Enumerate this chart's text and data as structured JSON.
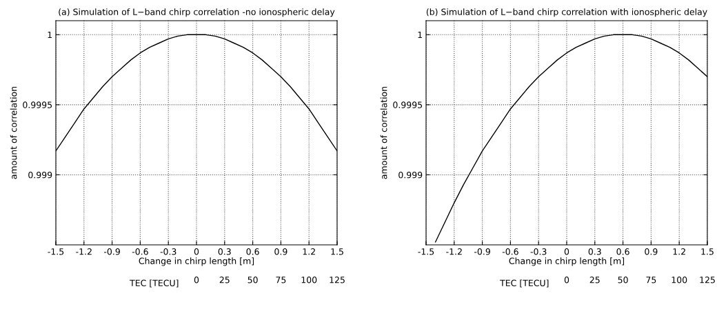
{
  "chart_data": [
    {
      "type": "line",
      "title": "(a) Simulation of L−band chirp correlation -no ionospheric delay",
      "xlabel": "Change in chirp length [m]",
      "ylabel": "amount of correlation",
      "x2label": "TEC [TECU]",
      "x": [
        -1.5,
        -1.4,
        -1.3,
        -1.2,
        -1.1,
        -1.0,
        -0.9,
        -0.8,
        -0.7,
        -0.6,
        -0.5,
        -0.4,
        -0.3,
        -0.2,
        -0.1,
        0,
        0.1,
        0.2,
        0.3,
        0.4,
        0.5,
        0.6,
        0.7,
        0.8,
        0.9,
        1.0,
        1.1,
        1.2,
        1.3,
        1.4,
        1.5
      ],
      "series": [
        {
          "color": "#000000",
          "values": [
            0.99917,
            0.99927,
            0.99937,
            0.99947,
            0.99955,
            0.99963,
            0.9997,
            0.99976,
            0.99982,
            0.99987,
            0.99991,
            0.99994,
            0.99997,
            0.99999,
            1.0,
            1.0,
            1.0,
            0.99999,
            0.99997,
            0.99994,
            0.99991,
            0.99987,
            0.99982,
            0.99976,
            0.9997,
            0.99963,
            0.99955,
            0.99947,
            0.99937,
            0.99927,
            0.99917
          ]
        }
      ],
      "xlim": [
        -1.5,
        1.5
      ],
      "xticks": [
        -1.5,
        -1.2,
        -0.9,
        -0.6,
        -0.3,
        0,
        0.3,
        0.6,
        0.9,
        1.2,
        1.5
      ],
      "ylim": [
        0.9985,
        1.0001
      ],
      "yticks": [
        0.999,
        0.9995,
        1
      ],
      "x2lim": [
        -125,
        125
      ],
      "x2ticks": [
        0,
        25,
        50,
        75,
        100,
        125
      ],
      "grid": true,
      "line_style": "solid",
      "marker": "none"
    },
    {
      "type": "line",
      "title": "(b) Simulation of L−band chirp correlation with ionospheric delay",
      "xlabel": "Change in chirp length [m]",
      "ylabel": "amount of correlation",
      "x2label": "TEC [TECU]",
      "x": [
        -1.4,
        -1.3,
        -1.2,
        -1.1,
        -1.0,
        -0.9,
        -0.8,
        -0.7,
        -0.6,
        -0.5,
        -0.4,
        -0.3,
        -0.2,
        -0.1,
        0,
        0.1,
        0.2,
        0.3,
        0.4,
        0.5,
        0.6,
        0.7,
        0.8,
        0.9,
        1.0,
        1.1,
        1.2,
        1.3,
        1.4,
        1.5
      ],
      "series": [
        {
          "color": "#000000",
          "values": [
            0.99852,
            0.99866,
            0.9988,
            0.99893,
            0.99905,
            0.99917,
            0.99927,
            0.99937,
            0.99947,
            0.99955,
            0.99963,
            0.9997,
            0.99976,
            0.99982,
            0.99987,
            0.99991,
            0.99994,
            0.99997,
            0.99999,
            1.0,
            1.0,
            1.0,
            0.99999,
            0.99997,
            0.99994,
            0.99991,
            0.99987,
            0.99982,
            0.99976,
            0.9997
          ]
        }
      ],
      "xlim": [
        -1.5,
        1.5
      ],
      "xticks": [
        -1.5,
        -1.2,
        -0.9,
        -0.6,
        -0.3,
        0,
        0.3,
        0.6,
        0.9,
        1.2,
        1.5
      ],
      "ylim": [
        0.9985,
        1.0001
      ],
      "yticks": [
        0.999,
        0.9995,
        1
      ],
      "x2lim": [
        -125,
        125
      ],
      "x2ticks": [
        0,
        25,
        50,
        75,
        100,
        125
      ],
      "grid": true,
      "line_style": "solid",
      "marker": "none"
    }
  ]
}
